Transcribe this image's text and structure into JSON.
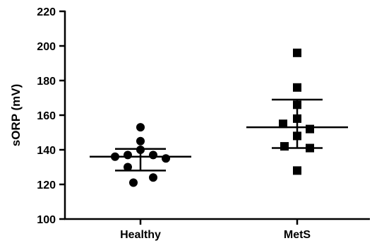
{
  "chart_data": {
    "type": "scatter",
    "ylabel": "sORP (mV)",
    "xlabel": "",
    "ylim": [
      100,
      220
    ],
    "yticks": [
      100,
      120,
      140,
      160,
      180,
      200,
      220
    ],
    "categories": [
      "Healthy",
      "MetS"
    ],
    "series": [
      {
        "category": "Healthy",
        "marker": "circle",
        "mean": 136,
        "error_upper": 140.5,
        "error_lower": 128,
        "points": [
          153,
          145,
          140,
          137,
          137,
          136,
          135,
          130,
          124,
          121
        ]
      },
      {
        "category": "MetS",
        "marker": "square",
        "mean": 153,
        "error_upper": 169,
        "error_lower": 141,
        "points": [
          196,
          176,
          166,
          158,
          155,
          152,
          148,
          142,
          141,
          128
        ]
      }
    ],
    "grid": false,
    "legend": "none"
  },
  "colors": {
    "marker": "#000000",
    "axis": "#000000"
  }
}
